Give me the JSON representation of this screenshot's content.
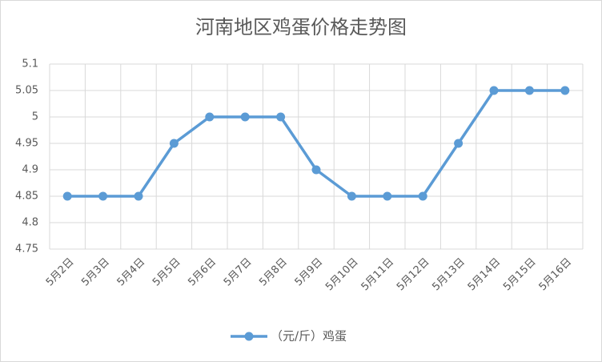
{
  "chart_data": {
    "type": "line",
    "title": "河南地区鸡蛋价格走势图",
    "categories": [
      "5月2日",
      "5月3日",
      "5月4日",
      "5月5日",
      "5月6日",
      "5月7日",
      "5月8日",
      "5月9日",
      "5月10日",
      "5月11日",
      "5月12日",
      "5月13日",
      "5月14日",
      "5月15日",
      "5月16日"
    ],
    "series": [
      {
        "name": "（元/斤）鸡蛋",
        "color": "#5b9bd5",
        "values": [
          4.85,
          4.85,
          4.85,
          4.95,
          5,
          5,
          5,
          4.9,
          4.85,
          4.85,
          4.85,
          4.95,
          5.05,
          5.05,
          5.05
        ]
      }
    ],
    "ylim": [
      4.75,
      5.1
    ],
    "yticks": [
      4.75,
      4.8,
      4.85,
      4.9,
      4.95,
      5,
      5.05,
      5.1
    ],
    "grid": true,
    "legend": "bottom"
  }
}
